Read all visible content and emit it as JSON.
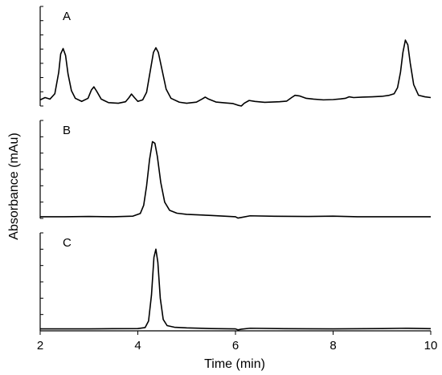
{
  "chart_data": {
    "type": "line",
    "xlabel": "Time (min)",
    "ylabel": "Absorbance (mAu)",
    "xlim": [
      2,
      10
    ],
    "x_ticks": [
      2,
      4,
      6,
      8,
      10
    ],
    "grid": false,
    "panels": [
      {
        "label": "A",
        "ylim": [
          0,
          65
        ],
        "minor_y_ticks": 7,
        "series": [
          {
            "points": [
              [
                2.0,
                4.0
              ],
              [
                2.1,
                5.5
              ],
              [
                2.2,
                4.5
              ],
              [
                2.3,
                8.0
              ],
              [
                2.38,
                22.0
              ],
              [
                2.42,
                34.0
              ],
              [
                2.47,
                37.5
              ],
              [
                2.52,
                33.0
              ],
              [
                2.57,
                21.0
              ],
              [
                2.64,
                10.0
              ],
              [
                2.72,
                5.0
              ],
              [
                2.85,
                3.0
              ],
              [
                2.98,
                5.0
              ],
              [
                3.05,
                10.5
              ],
              [
                3.1,
                12.5
              ],
              [
                3.16,
                9.5
              ],
              [
                3.25,
                4.5
              ],
              [
                3.4,
                2.2
              ],
              [
                3.6,
                1.8
              ],
              [
                3.75,
                2.8
              ],
              [
                3.82,
                5.5
              ],
              [
                3.87,
                7.8
              ],
              [
                3.93,
                5.5
              ],
              [
                4.0,
                3.0
              ],
              [
                4.1,
                4.0
              ],
              [
                4.18,
                9.0
              ],
              [
                4.25,
                22.0
              ],
              [
                4.32,
                35.0
              ],
              [
                4.37,
                38.0
              ],
              [
                4.42,
                35.0
              ],
              [
                4.5,
                23.0
              ],
              [
                4.58,
                11.0
              ],
              [
                4.68,
                5.0
              ],
              [
                4.85,
                2.5
              ],
              [
                5.0,
                1.8
              ],
              [
                5.2,
                2.5
              ],
              [
                5.32,
                4.6
              ],
              [
                5.38,
                5.8
              ],
              [
                5.45,
                4.5
              ],
              [
                5.6,
                2.6
              ],
              [
                5.8,
                2.0
              ],
              [
                5.95,
                1.6
              ],
              [
                6.05,
                0.5
              ],
              [
                6.12,
                0.0
              ],
              [
                6.18,
                1.8
              ],
              [
                6.28,
                3.6
              ],
              [
                6.4,
                3.0
              ],
              [
                6.6,
                2.4
              ],
              [
                6.9,
                2.8
              ],
              [
                7.05,
                3.2
              ],
              [
                7.15,
                5.5
              ],
              [
                7.22,
                7.0
              ],
              [
                7.32,
                6.5
              ],
              [
                7.45,
                5.0
              ],
              [
                7.6,
                4.5
              ],
              [
                7.8,
                4.0
              ],
              [
                8.0,
                4.2
              ],
              [
                8.15,
                4.6
              ],
              [
                8.25,
                5.0
              ],
              [
                8.33,
                6.0
              ],
              [
                8.42,
                5.5
              ],
              [
                8.6,
                5.8
              ],
              [
                8.8,
                6.0
              ],
              [
                9.0,
                6.3
              ],
              [
                9.15,
                7.0
              ],
              [
                9.25,
                8.0
              ],
              [
                9.32,
                12.0
              ],
              [
                9.38,
                22.0
              ],
              [
                9.43,
                35.0
              ],
              [
                9.48,
                43.0
              ],
              [
                9.53,
                40.0
              ],
              [
                9.58,
                28.0
              ],
              [
                9.65,
                14.0
              ],
              [
                9.75,
                7.0
              ],
              [
                9.88,
                6.0
              ],
              [
                10.0,
                5.5
              ]
            ]
          }
        ]
      },
      {
        "label": "B",
        "ylim": [
          0,
          60
        ],
        "minor_y_ticks": 6,
        "series": [
          {
            "points": [
              [
                2.0,
                1.0
              ],
              [
                2.5,
                1.0
              ],
              [
                3.0,
                1.2
              ],
              [
                3.5,
                1.0
              ],
              [
                3.9,
                1.4
              ],
              [
                4.05,
                3.0
              ],
              [
                4.12,
                8.0
              ],
              [
                4.18,
                20.0
              ],
              [
                4.24,
                36.0
              ],
              [
                4.3,
                47.0
              ],
              [
                4.35,
                46.0
              ],
              [
                4.4,
                38.0
              ],
              [
                4.47,
                22.0
              ],
              [
                4.55,
                10.0
              ],
              [
                4.65,
                5.0
              ],
              [
                4.8,
                3.2
              ],
              [
                5.0,
                2.5
              ],
              [
                5.5,
                1.8
              ],
              [
                6.0,
                1.0
              ],
              [
                6.05,
                0.2
              ],
              [
                6.12,
                0.6
              ],
              [
                6.3,
                1.6
              ],
              [
                6.8,
                1.3
              ],
              [
                7.5,
                1.2
              ],
              [
                8.0,
                1.4
              ],
              [
                8.5,
                1.0
              ],
              [
                9.0,
                1.0
              ],
              [
                10.0,
                1.0
              ]
            ]
          }
        ]
      },
      {
        "label": "C",
        "ylim": [
          0,
          60
        ],
        "minor_y_ticks": 6,
        "series": [
          {
            "points": [
              [
                2.0,
                1.2
              ],
              [
                2.5,
                1.2
              ],
              [
                3.0,
                1.2
              ],
              [
                3.5,
                1.3
              ],
              [
                4.0,
                1.4
              ],
              [
                4.15,
                2.0
              ],
              [
                4.22,
                6.0
              ],
              [
                4.28,
                22.0
              ],
              [
                4.33,
                45.0
              ],
              [
                4.37,
                50.0
              ],
              [
                4.41,
                42.0
              ],
              [
                4.46,
                20.0
              ],
              [
                4.52,
                7.0
              ],
              [
                4.6,
                3.2
              ],
              [
                4.75,
                2.2
              ],
              [
                5.0,
                1.8
              ],
              [
                5.5,
                1.4
              ],
              [
                6.0,
                1.2
              ],
              [
                6.05,
                0.6
              ],
              [
                6.12,
                1.0
              ],
              [
                6.3,
                1.6
              ],
              [
                7.0,
                1.3
              ],
              [
                8.0,
                1.2
              ],
              [
                9.0,
                1.4
              ],
              [
                9.5,
                1.6
              ],
              [
                10.0,
                1.3
              ]
            ]
          }
        ]
      }
    ]
  }
}
